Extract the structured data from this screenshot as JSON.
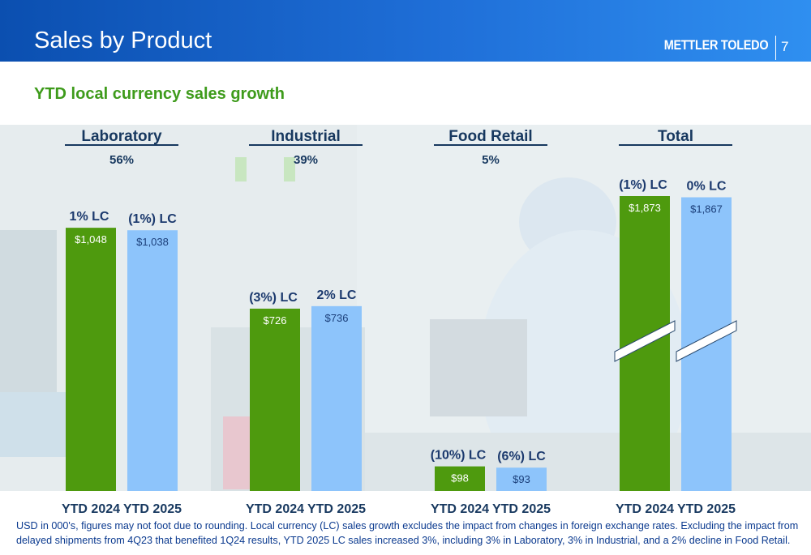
{
  "header": {
    "title": "Sales by Product",
    "logo_text": "METTLER TOLEDO",
    "page_number": "7"
  },
  "subtitle": "YTD local currency sales growth",
  "footnote": "USD in 000's, figures may not foot due to rounding. Local currency (LC) sales growth excludes the impact from changes in foreign exchange rates. Excluding the impact from delayed shipments from 4Q23 that benefited 1Q24 results, YTD 2025 LC sales increased 3%, including 3% in Laboratory, 3% in Industrial, and a 2% decline in Food Retail.",
  "colors": {
    "header_blue": "#1f6fd8",
    "subtitle_green": "#3e9b1b",
    "bar_2024": "#4e9a0e",
    "bar_2025": "#8dc4fb"
  },
  "chart_data": {
    "type": "bar",
    "title": "",
    "xlabel": "",
    "ylabel": "",
    "axis_break_on": "Total",
    "categories": [
      "Laboratory",
      "Industrial",
      "Food Retail",
      "Total"
    ],
    "category_share": [
      "56%",
      "39%",
      "5%",
      ""
    ],
    "x_labels": [
      "YTD 2024",
      "YTD 2025"
    ],
    "series": [
      {
        "values": [
          1048,
          726,
          98,
          1873
        ],
        "value_labels": [
          "$1,048",
          "$726",
          "$98",
          "$1,873"
        ],
        "lc_growth": [
          "1% LC",
          "(3%) LC",
          "(10%) LC",
          "(1%) LC"
        ]
      },
      {
        "values": [
          1038,
          736,
          93,
          1867
        ],
        "value_labels": [
          "$1,038",
          "$736",
          "$93",
          "$1,867"
        ],
        "lc_growth": [
          "(1%) LC",
          "2% LC",
          "(6%) LC",
          "0% LC"
        ]
      }
    ]
  }
}
